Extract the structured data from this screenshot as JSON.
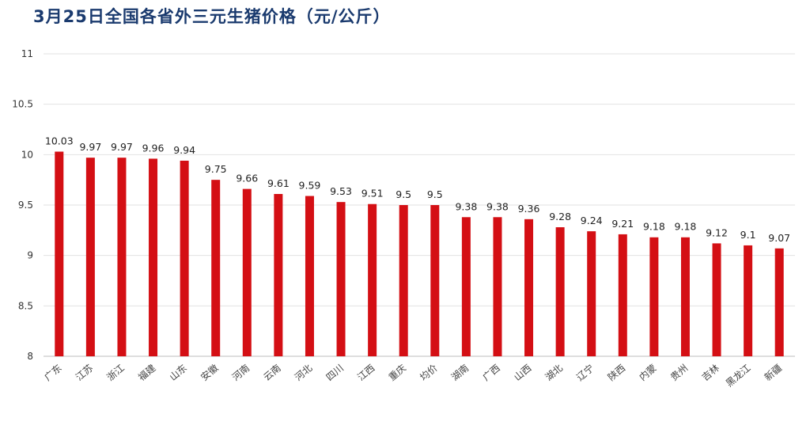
{
  "title": "3月25日全国各省外三元生猪价格（元/公斤）",
  "chart_data": {
    "type": "bar",
    "title": "3月25日全国各省外三元生猪价格（元/公斤）",
    "xlabel": "",
    "ylabel": "",
    "ylim": [
      8,
      11
    ],
    "yticks": [
      "8",
      "8.5",
      "9",
      "9.5",
      "10",
      "10.5",
      "11"
    ],
    "grid": true,
    "legend": "none",
    "bar_color": "#d40f14",
    "categories": [
      "广东",
      "江苏",
      "浙江",
      "福建",
      "山东",
      "安徽",
      "河南",
      "云南",
      "河北",
      "四川",
      "江西",
      "重庆",
      "均价",
      "湖南",
      "广西",
      "山西",
      "湖北",
      "辽宁",
      "陕西",
      "内蒙",
      "贵州",
      "吉林",
      "黑龙江",
      "新疆"
    ],
    "values": [
      10.03,
      9.97,
      9.97,
      9.96,
      9.94,
      9.75,
      9.66,
      9.61,
      9.59,
      9.53,
      9.51,
      9.5,
      9.5,
      9.38,
      9.38,
      9.36,
      9.28,
      9.24,
      9.21,
      9.18,
      9.18,
      9.12,
      9.1,
      9.07
    ],
    "value_labels": [
      "10.03",
      "9.97",
      "9.97",
      "9.96",
      "9.94",
      "9.75",
      "9.66",
      "9.61",
      "9.59",
      "9.53",
      "9.51",
      "9.5",
      "9.5",
      "9.38",
      "9.38",
      "9.36",
      "9.28",
      "9.24",
      "9.21",
      "9.18",
      "9.18",
      "9.12",
      "9.1",
      "9.07"
    ]
  }
}
